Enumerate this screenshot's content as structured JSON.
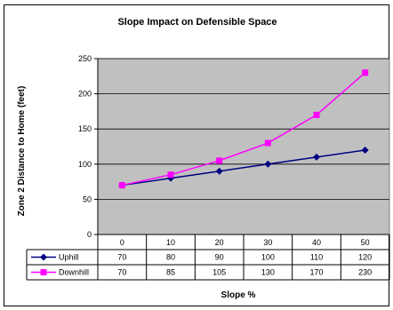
{
  "chart_data": {
    "type": "line",
    "title": "Slope Impact on Defensible Space",
    "xlabel": "Slope %",
    "ylabel": "Zone 2 Distance to Home (feet)",
    "ylim": [
      0,
      250
    ],
    "yticks": [
      0,
      50,
      100,
      150,
      200,
      250
    ],
    "categories": [
      "0",
      "10",
      "20",
      "30",
      "40",
      "50"
    ],
    "grid": true,
    "legend": "data-table",
    "series": [
      {
        "name": "Uphill",
        "color": "#000080",
        "marker": "diamond",
        "values": [
          70,
          80,
          90,
          100,
          110,
          120
        ]
      },
      {
        "name": "Downhill",
        "color": "#ff00ff",
        "marker": "square",
        "values": [
          70,
          85,
          105,
          130,
          170,
          230
        ]
      }
    ],
    "plot_background": "#c0c0c0"
  }
}
